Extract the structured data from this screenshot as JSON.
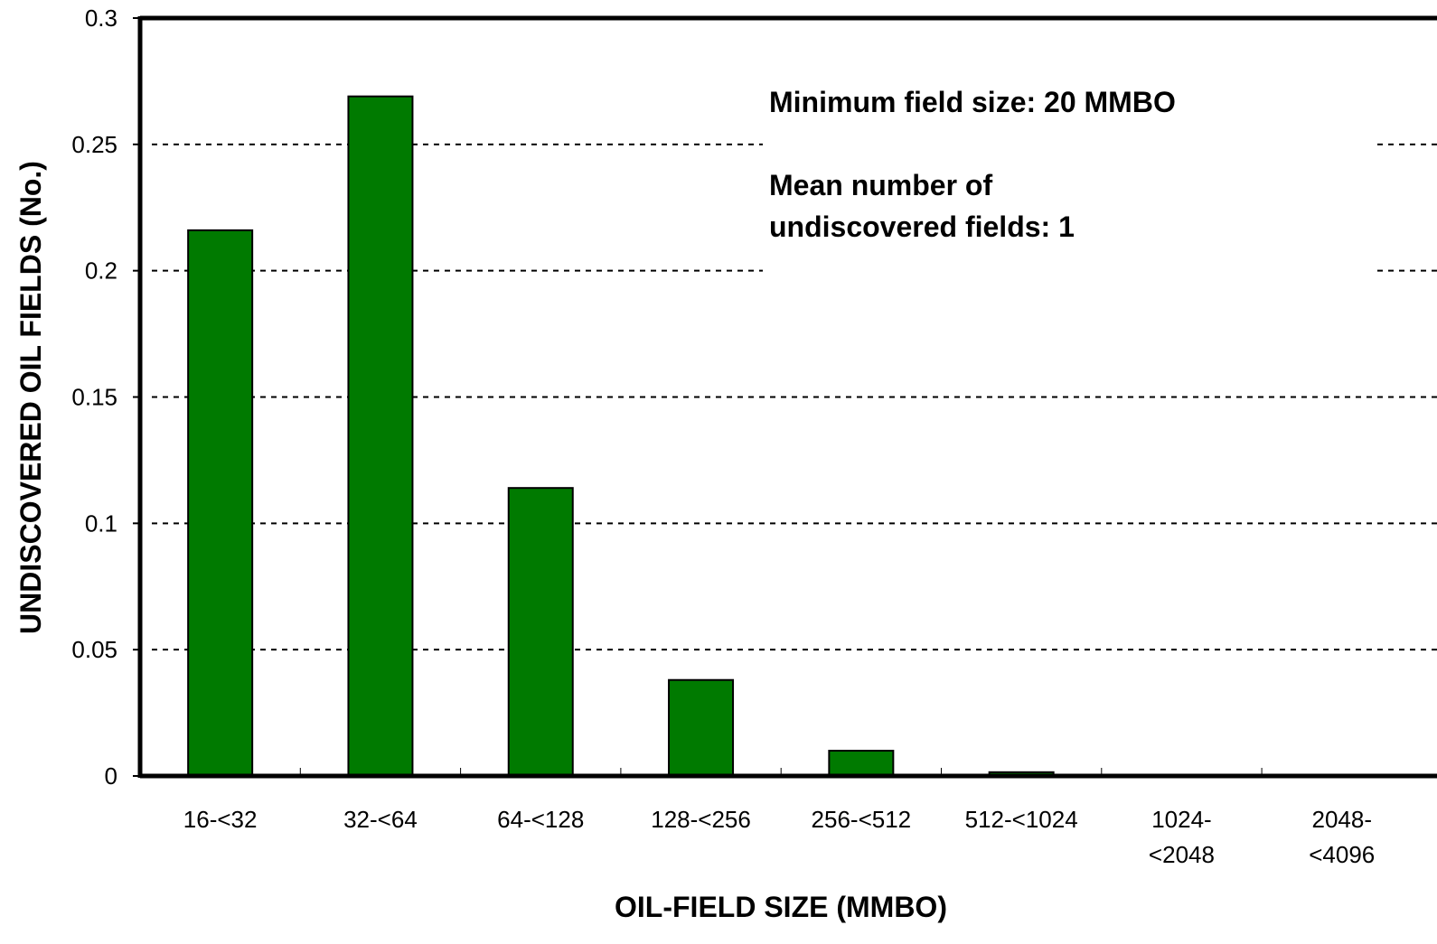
{
  "chart_data": {
    "type": "bar",
    "categories": [
      "16-<32",
      "32-<64",
      "64-<128",
      "128-<256",
      "256-<512",
      "512-<1024",
      "1024-\n<2048",
      "2048-\n<4096"
    ],
    "values": [
      0.216,
      0.269,
      0.114,
      0.038,
      0.01,
      0.0015,
      0,
      0
    ],
    "xlabel": "OIL-FIELD SIZE (MMBO)",
    "ylabel": "UNDISCOVERED OIL FIELDS (No.)",
    "ylim": [
      0,
      0.3
    ],
    "yticks": [
      "0",
      "0.05",
      "0.1",
      "0.15",
      "0.2",
      "0.25",
      "0.3"
    ],
    "grid": true,
    "annotations": {
      "min_field": "Minimum field size: 20 MMBO",
      "mean_line1": "Mean number of",
      "mean_line2": "undiscovered fields: 1"
    },
    "colors": {
      "bar": "#007a00",
      "axis": "#000000"
    }
  }
}
